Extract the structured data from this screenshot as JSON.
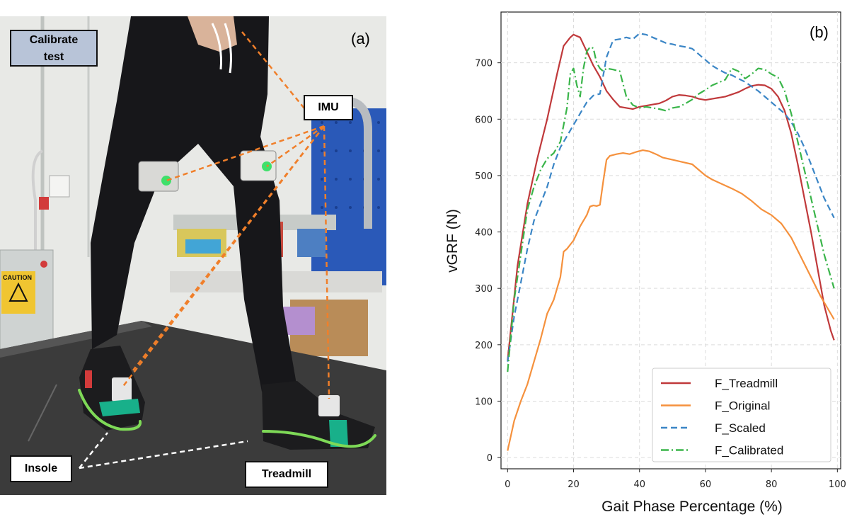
{
  "panel_a": {
    "label": "(a)",
    "callouts": {
      "calibrate": [
        "Calibrate",
        "test"
      ],
      "imu": "IMU",
      "insole": "Insole",
      "treadmill": "Treadmill"
    },
    "colors": {
      "imu_lines": "#f07f2a",
      "insole_lines": "#ffffff",
      "insole_outline": "#7ed957",
      "calibrate_box": "#b8c4d8",
      "pants": "#17171a",
      "treadmill_belt": "#3b3b3b",
      "wall": "#e9ebe8",
      "pegboard": "#2a59b8"
    },
    "caution_sign": "CAUTION"
  },
  "panel_b": {
    "label": "(b)",
    "chart_data": {
      "type": "line",
      "title": "",
      "xlabel": "Gait Phase Percentage (%)",
      "ylabel": "vGRF (N)",
      "xlim": [
        -2,
        101
      ],
      "ylim": [
        -20,
        790
      ],
      "xticks": [
        0,
        20,
        40,
        60,
        80,
        100
      ],
      "yticks": [
        0,
        100,
        200,
        300,
        400,
        500,
        600,
        700
      ],
      "grid": true,
      "legend_position": "bottom-right",
      "series": [
        {
          "name": "F_Treadmill",
          "color": "#c0393b",
          "style": "solid",
          "x": [
            0,
            3,
            6,
            9,
            12,
            15,
            17,
            19,
            20,
            22,
            24,
            26,
            28,
            30,
            32,
            34,
            36,
            38,
            40,
            42,
            44,
            46,
            48,
            50,
            52,
            54,
            56,
            58,
            60,
            62,
            64,
            66,
            68,
            70,
            72,
            74,
            76,
            78,
            80,
            82,
            84,
            86,
            88,
            90,
            92,
            94,
            96,
            98,
            99
          ],
          "y": [
            172,
            340,
            450,
            530,
            600,
            680,
            730,
            745,
            750,
            745,
            720,
            695,
            675,
            650,
            635,
            622,
            620,
            618,
            622,
            624,
            626,
            628,
            633,
            640,
            643,
            642,
            640,
            636,
            634,
            636,
            638,
            640,
            644,
            648,
            654,
            659,
            661,
            660,
            654,
            640,
            615,
            575,
            520,
            460,
            400,
            335,
            270,
            225,
            208
          ]
        },
        {
          "name": "F_Original",
          "color": "#f5913d",
          "style": "solid",
          "x": [
            0,
            2,
            4,
            6,
            8,
            10,
            12,
            14,
            16,
            17,
            18,
            20,
            22,
            24,
            25,
            26,
            27,
            28,
            29,
            30,
            31,
            33,
            35,
            37,
            39,
            41,
            43,
            45,
            47,
            50,
            53,
            56,
            58,
            60,
            62,
            65,
            68,
            71,
            74,
            77,
            80,
            83,
            86,
            89,
            92,
            95,
            99
          ],
          "y": [
            12,
            65,
            100,
            130,
            170,
            210,
            255,
            280,
            320,
            365,
            370,
            385,
            410,
            430,
            445,
            447,
            446,
            448,
            490,
            528,
            535,
            538,
            540,
            538,
            542,
            545,
            543,
            538,
            532,
            528,
            524,
            520,
            510,
            500,
            493,
            485,
            477,
            468,
            455,
            440,
            430,
            415,
            390,
            355,
            320,
            285,
            245
          ]
        },
        {
          "name": "F_Scaled",
          "color": "#3b86c6",
          "style": "dashed",
          "x": [
            0,
            2,
            4,
            6,
            8,
            10,
            12,
            14,
            16,
            18,
            20,
            22,
            24,
            26,
            28,
            30,
            32,
            34,
            36,
            38,
            40,
            42,
            44,
            46,
            48,
            50,
            52,
            54,
            56,
            58,
            60,
            62,
            64,
            66,
            68,
            70,
            72,
            74,
            76,
            78,
            80,
            82,
            84,
            86,
            88,
            90,
            92,
            94,
            96,
            99
          ],
          "y": [
            170,
            250,
            310,
            370,
            420,
            450,
            480,
            520,
            550,
            570,
            590,
            610,
            630,
            642,
            645,
            710,
            740,
            742,
            745,
            742,
            752,
            750,
            745,
            740,
            735,
            733,
            730,
            728,
            725,
            715,
            705,
            695,
            688,
            682,
            678,
            672,
            666,
            658,
            650,
            640,
            630,
            620,
            610,
            595,
            575,
            550,
            520,
            490,
            460,
            425
          ]
        },
        {
          "name": "F_Calibrated",
          "color": "#3ab54a",
          "style": "dashdot",
          "x": [
            0,
            2,
            4,
            6,
            8,
            10,
            12,
            14,
            16,
            18,
            19,
            20,
            21,
            22,
            23,
            24,
            25,
            26,
            27,
            28,
            29,
            30,
            32,
            34,
            36,
            38,
            40,
            42,
            44,
            46,
            48,
            50,
            52,
            54,
            56,
            58,
            60,
            62,
            64,
            66,
            68,
            70,
            72,
            74,
            76,
            78,
            80,
            82,
            84,
            86,
            88,
            90,
            92,
            94,
            96,
            99
          ],
          "y": [
            152,
            280,
            360,
            440,
            480,
            510,
            530,
            540,
            560,
            620,
            680,
            690,
            660,
            640,
            690,
            720,
            728,
            726,
            700,
            690,
            685,
            690,
            688,
            685,
            640,
            625,
            620,
            622,
            620,
            618,
            615,
            620,
            622,
            628,
            635,
            645,
            652,
            660,
            665,
            670,
            690,
            685,
            672,
            680,
            690,
            688,
            680,
            674,
            650,
            610,
            560,
            510,
            460,
            410,
            360,
            300
          ]
        }
      ]
    }
  }
}
